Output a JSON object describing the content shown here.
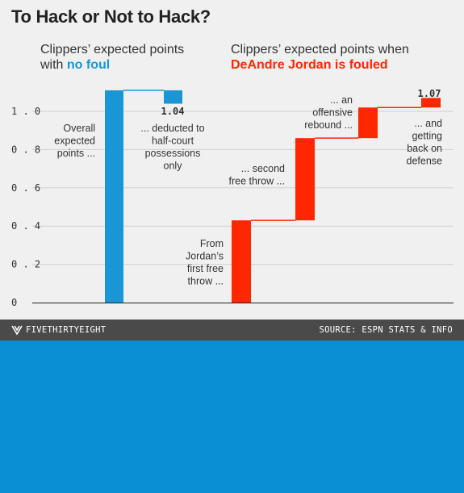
{
  "title": "To Hack or Not to Hack?",
  "panels": {
    "left": {
      "heading_line1": "Clippers’ expected points",
      "heading_prefix": "with ",
      "heading_highlight": "no foul"
    },
    "right": {
      "heading_line1": "Clippers’ expected points when",
      "heading_highlight": "DeAndre Jordan is fouled"
    }
  },
  "colors": {
    "no_foul": "#1a96d6",
    "fouled": "#ff2700",
    "grid": "#cfcfcf",
    "footer": "#4a4a4a",
    "below": "#0a8fd4"
  },
  "chart_data": {
    "type": "waterfall",
    "ylim": [
      0,
      1.1
    ],
    "yticks": [
      {
        "value": 0,
        "label": "0"
      },
      {
        "value": 0.2,
        "label": "0.2"
      },
      {
        "value": 0.4,
        "label": "0.4"
      },
      {
        "value": 0.6,
        "label": "0.6"
      },
      {
        "value": 0.8,
        "label": "0.8"
      },
      {
        "value": 1.0,
        "label": "1.0"
      }
    ],
    "grid": true,
    "series": [
      {
        "panel": "no foul",
        "steps": [
          {
            "annotation": [
              "Overall",
              "expected",
              "points ..."
            ],
            "start": 0,
            "end": 1.11
          },
          {
            "annotation": [
              "... deducted to",
              "half-court",
              "possessions",
              "only"
            ],
            "start": 1.11,
            "end": 1.04
          }
        ],
        "final_value": 1.04,
        "final_label": "1.04"
      },
      {
        "panel": "DeAndre Jordan is fouled",
        "steps": [
          {
            "annotation": [
              "From",
              "Jordan’s",
              "first free",
              "throw ..."
            ],
            "start": 0,
            "end": 0.43
          },
          {
            "annotation": [
              "... second",
              "free throw ..."
            ],
            "start": 0.43,
            "end": 0.86
          },
          {
            "annotation": [
              "... an",
              "offensive",
              "rebound ..."
            ],
            "start": 0.86,
            "end": 1.02
          },
          {
            "annotation": [
              "... and",
              "getting",
              "back on",
              "defense"
            ],
            "start": 1.02,
            "end": 1.07
          }
        ],
        "final_value": 1.07,
        "final_label": "1.07"
      }
    ]
  },
  "footer": {
    "brand": "FIVETHIRTYEIGHT",
    "source": "SOURCE: ESPN STATS & INFO",
    "brand_icon": "fivethirtyeight-logo-icon"
  }
}
